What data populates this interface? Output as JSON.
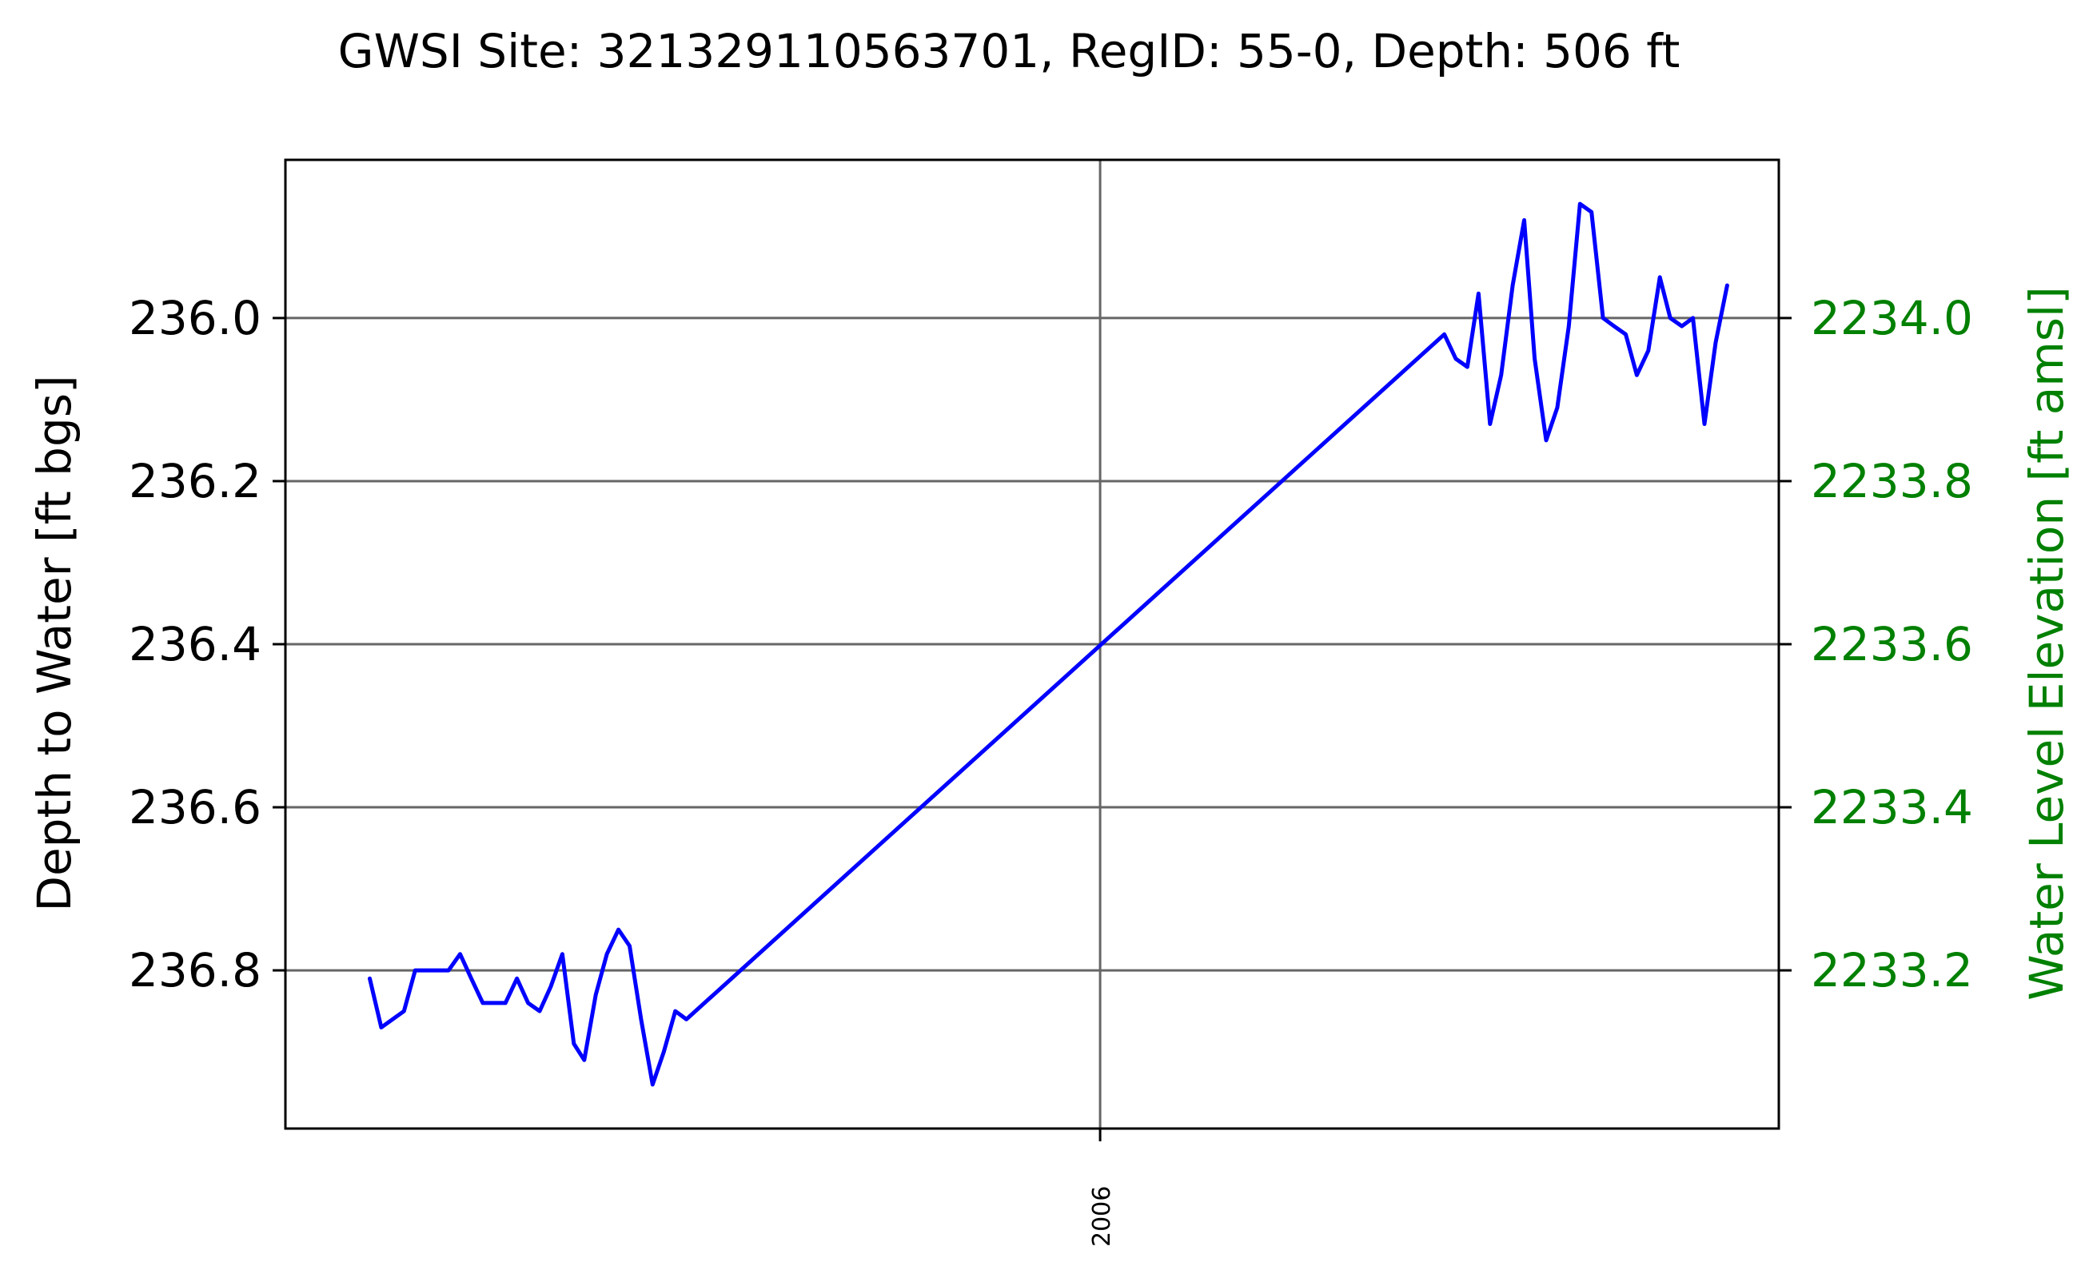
{
  "chart_data": {
    "type": "line",
    "title": "GWSI Site: 321329110563701, RegID: 55-0, Depth: 506 ft",
    "xlabel": "",
    "ylabel": "Depth to Water [ft bgs]",
    "ylabel_right": "Water Level Elevation [ft amsl]",
    "x_ticks": [
      "2006"
    ],
    "y_ticks": [
      "236.0",
      "236.2",
      "236.4",
      "236.6",
      "236.8"
    ],
    "y2_ticks": [
      "2234.0",
      "2233.8",
      "2233.6",
      "2233.4",
      "2233.2"
    ],
    "ylim": [
      236.994,
      235.806
    ],
    "y_inverted": true,
    "grid": true,
    "colors": {
      "line": "#0000ff",
      "right_axis": "#008000",
      "grid": "#666666"
    },
    "series": [
      {
        "x": [
          "2000-08",
          "2000-09",
          "2000-11",
          "2000-12",
          "2001-01",
          "2001-03",
          "2001-04",
          "2001-05",
          "2001-06",
          "2001-07",
          "2001-08",
          "2001-09",
          "2001-10",
          "2001-11",
          "2001-12",
          "2002-01",
          "2002-02",
          "2002-03",
          "2002-04",
          "2002-05",
          "2002-06",
          "2002-07",
          "2002-08",
          "2002-09",
          "2002-10",
          "2002-11",
          "2002-12",
          "2008-07",
          "2008-08",
          "2008-09",
          "2008-10",
          "2008-11",
          "2008-12",
          "2009-01",
          "2009-02",
          "2009-03",
          "2009-04",
          "2009-05",
          "2009-06",
          "2009-07",
          "2009-08",
          "2009-09",
          "2009-10",
          "2009-11",
          "2009-12",
          "2010-01",
          "2010-02",
          "2010-03",
          "2010-04",
          "2010-05",
          "2010-06",
          "2010-07",
          "2010-08"
        ],
        "y": [
          236.81,
          236.87,
          236.85,
          236.8,
          236.8,
          236.8,
          236.78,
          236.81,
          236.84,
          236.84,
          236.84,
          236.81,
          236.84,
          236.85,
          236.82,
          236.78,
          236.89,
          236.91,
          236.83,
          236.78,
          236.75,
          236.77,
          236.86,
          236.94,
          236.9,
          236.85,
          236.86,
          236.02,
          236.05,
          236.06,
          235.97,
          236.13,
          236.07,
          235.96,
          235.88,
          236.05,
          236.15,
          236.11,
          236.01,
          235.86,
          235.87,
          236.0,
          236.01,
          236.02,
          236.07,
          236.04,
          235.95,
          236.0,
          236.01,
          236.0,
          236.13,
          236.03,
          235.96
        ]
      }
    ]
  }
}
